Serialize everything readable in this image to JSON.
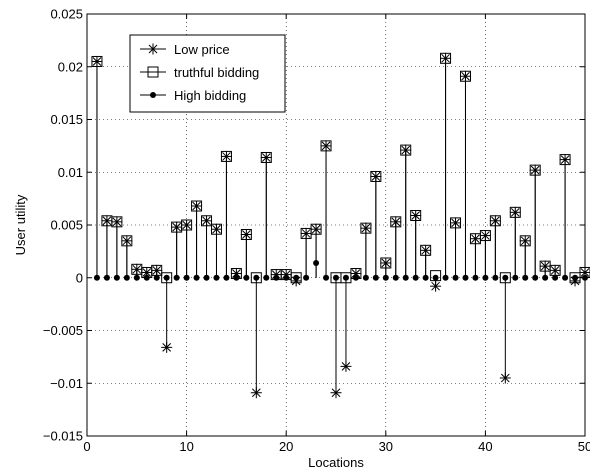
{
  "chart_data": {
    "type": "stem",
    "xlabel": "Locations",
    "ylabel": "User utility",
    "xlim": [
      0,
      50
    ],
    "ylim": [
      -0.015,
      0.025
    ],
    "xticks": [
      0,
      10,
      20,
      30,
      40,
      50
    ],
    "yticks": [
      -0.015,
      -0.01,
      -0.005,
      0,
      0.005,
      0.01,
      0.015,
      0.02,
      0.025
    ],
    "ytick_labels": [
      "−0.015",
      "−0.01",
      "−0.005",
      "0",
      "0.005",
      "0.01",
      "0.015",
      "0.02",
      "0.025"
    ],
    "grid": true,
    "legend_position": "top-left",
    "series": [
      {
        "name": "Low price",
        "marker": "asterisk",
        "x": [
          1,
          2,
          3,
          4,
          5,
          6,
          7,
          8,
          9,
          10,
          11,
          12,
          13,
          14,
          15,
          16,
          17,
          18,
          19,
          20,
          21,
          22,
          23,
          24,
          25,
          26,
          27,
          28,
          29,
          30,
          31,
          32,
          33,
          34,
          35,
          36,
          37,
          38,
          39,
          40,
          41,
          42,
          43,
          44,
          45,
          46,
          47,
          48,
          49,
          50
        ],
        "values": [
          0.0205,
          0.0054,
          0.0053,
          0.0035,
          0.0008,
          0.0005,
          0.0007,
          -0.0066,
          0.0048,
          0.005,
          0.0068,
          0.0054,
          0.0046,
          0.0115,
          0.0004,
          0.0041,
          -0.0109,
          0.0114,
          0.0003,
          0.0003,
          -0.0003,
          0.0042,
          0.0046,
          0.0125,
          -0.0109,
          -0.0084,
          0.0004,
          0.0047,
          0.0096,
          0.0014,
          0.0053,
          0.0121,
          0.0059,
          0.0026,
          -0.0008,
          0.0208,
          0.0052,
          0.0191,
          0.0037,
          0.004,
          0.0054,
          -0.0095,
          0.0062,
          0.0035,
          0.0102,
          0.0011,
          0.0007,
          0.0112,
          -0.0003,
          0.0005
        ]
      },
      {
        "name": "truthful bidding",
        "marker": "square",
        "x": [
          1,
          2,
          3,
          4,
          5,
          6,
          7,
          8,
          9,
          10,
          11,
          12,
          13,
          14,
          15,
          16,
          17,
          18,
          19,
          20,
          21,
          22,
          23,
          24,
          25,
          26,
          27,
          28,
          29,
          30,
          31,
          32,
          33,
          34,
          35,
          36,
          37,
          38,
          39,
          40,
          41,
          42,
          43,
          44,
          45,
          46,
          47,
          48,
          49,
          50
        ],
        "values": [
          0.0205,
          0.0054,
          0.0053,
          0.0035,
          0.0008,
          0.0005,
          0.0007,
          0,
          0.0048,
          0.005,
          0.0068,
          0.0054,
          0.0046,
          0.0115,
          0.0004,
          0.0041,
          0,
          0.0114,
          0.0003,
          0.0003,
          0,
          0.0042,
          0.0046,
          0.0125,
          0,
          0,
          0.0004,
          0.0047,
          0.0096,
          0.0014,
          0.0053,
          0.0121,
          0.0059,
          0.0026,
          0.0002,
          0.0208,
          0.0052,
          0.0191,
          0.0037,
          0.004,
          0.0054,
          0,
          0.0062,
          0.0035,
          0.0102,
          0.0011,
          0.0007,
          0.0112,
          0,
          0.0005
        ]
      },
      {
        "name": "High bidding",
        "marker": "dot",
        "x": [
          1,
          2,
          3,
          4,
          5,
          6,
          7,
          8,
          9,
          10,
          11,
          12,
          13,
          14,
          15,
          16,
          17,
          18,
          19,
          20,
          21,
          22,
          23,
          24,
          25,
          26,
          27,
          28,
          29,
          30,
          31,
          32,
          33,
          34,
          35,
          36,
          37,
          38,
          39,
          40,
          41,
          42,
          43,
          44,
          45,
          46,
          47,
          48,
          49,
          50
        ],
        "values": [
          0,
          0,
          0,
          0,
          0,
          0,
          0,
          0,
          0,
          0,
          0,
          0,
          0,
          0,
          0,
          0,
          0,
          0,
          0,
          0,
          0,
          0,
          0.0014,
          0,
          0,
          0,
          0,
          0,
          0,
          0,
          0,
          0,
          0,
          0,
          0,
          0,
          0,
          0,
          0,
          0,
          0,
          0,
          0,
          0,
          0,
          0,
          0,
          0,
          0,
          0
        ]
      }
    ]
  }
}
